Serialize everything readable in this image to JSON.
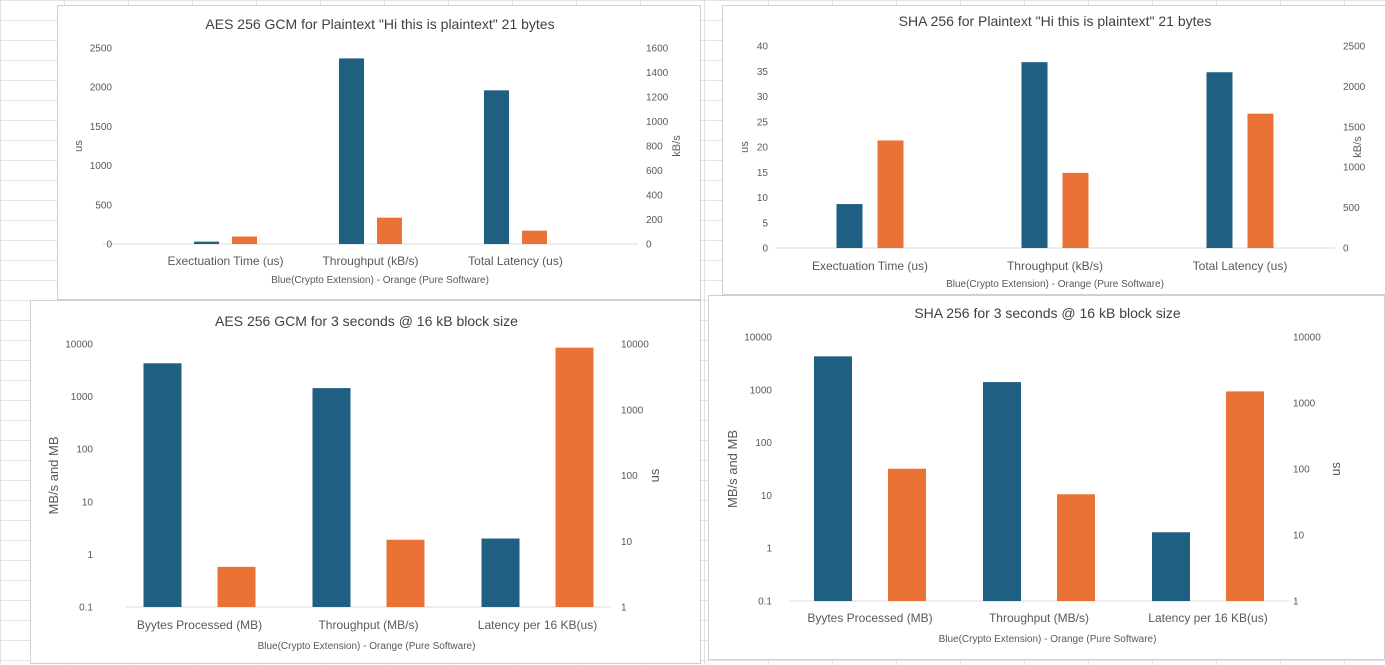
{
  "chart_data": [
    {
      "type": "bar",
      "title": "AES 256 GCM for Plaintext \"Hi this is plaintext\" 21 bytes",
      "xlabel": "Blue(Crypto Extension) - Orange (Pure  Software)",
      "ylabel": "us",
      "y2label": "kB/s",
      "scale": "linear",
      "ylim": [
        0,
        2500
      ],
      "y2lim": [
        0,
        1600
      ],
      "y_ticks": [
        "0",
        "500",
        "1000",
        "1500",
        "2000",
        "2500"
      ],
      "y2_ticks": [
        "0",
        "200",
        "400",
        "600",
        "800",
        "1000",
        "1200",
        "1400",
        "1600"
      ],
      "categories": [
        "Exectuation Time (us)",
        "Throughput (kB/s)",
        "Total Latency (us)"
      ],
      "bars": [
        {
          "category": 0,
          "series": "Crypto Extension",
          "axis": "y",
          "value": 30
        },
        {
          "category": 0,
          "series": "Pure Software",
          "axis": "y",
          "value": 95
        },
        {
          "category": 1,
          "series": "Crypto Extension",
          "axis": "y2",
          "value": 1515
        },
        {
          "category": 1,
          "series": "Pure Software",
          "axis": "y2",
          "value": 215
        },
        {
          "category": 2,
          "series": "Crypto Extension",
          "axis": "y",
          "value": 1960
        },
        {
          "category": 2,
          "series": "Pure Software",
          "axis": "y",
          "value": 170
        }
      ],
      "legend": "none",
      "grid": false
    },
    {
      "type": "bar",
      "title": "SHA 256 for Plaintext \"Hi this is plaintext\" 21 bytes",
      "xlabel": "Blue(Crypto Extension) - Orange (Pure  Software)",
      "ylabel": "us",
      "y2label": "kB/s",
      "scale": "linear",
      "ylim": [
        0,
        40
      ],
      "y2lim": [
        0,
        2500
      ],
      "y_ticks": [
        "0",
        "5",
        "10",
        "15",
        "20",
        "25",
        "30",
        "35",
        "40"
      ],
      "y2_ticks": [
        "0",
        "500",
        "1000",
        "1500",
        "2000",
        "2500"
      ],
      "categories": [
        "Exectuation Time (us)",
        "Throughput (kB/s)",
        "Total Latency (us)"
      ],
      "bars": [
        {
          "category": 0,
          "series": "Crypto Extension",
          "axis": "y",
          "value": 8.7
        },
        {
          "category": 0,
          "series": "Pure Software",
          "axis": "y",
          "value": 21.3
        },
        {
          "category": 1,
          "series": "Crypto Extension",
          "axis": "y2",
          "value": 2300
        },
        {
          "category": 1,
          "series": "Pure Software",
          "axis": "y2",
          "value": 930
        },
        {
          "category": 2,
          "series": "Crypto Extension",
          "axis": "y",
          "value": 34.8
        },
        {
          "category": 2,
          "series": "Pure Software",
          "axis": "y",
          "value": 26.6
        }
      ],
      "legend": "none",
      "grid": false
    },
    {
      "type": "bar",
      "title": "AES 256 GCM for 3 seconds @ 16 kB block size",
      "xlabel": "Blue(Crypto Extension) - Orange (Pure  Software)",
      "ylabel": "MB/s and MB",
      "y2label": "us",
      "scale": "log",
      "ylim": [
        0.1,
        10000
      ],
      "y2lim": [
        1,
        10000
      ],
      "y_ticks": [
        "0.1",
        "1",
        "10",
        "100",
        "1000",
        "10000"
      ],
      "y2_ticks": [
        "1",
        "10",
        "100",
        "1000",
        "10000"
      ],
      "categories": [
        "Byytes Processed (MB)",
        "Throughput (MB/s)",
        "Latency  per 16 KB(us)"
      ],
      "bars": [
        {
          "category": 0,
          "series": "Crypto Extension",
          "axis": "y",
          "value": 4300
        },
        {
          "category": 0,
          "series": "Pure Software",
          "axis": "y",
          "value": 0.58
        },
        {
          "category": 1,
          "series": "Crypto Extension",
          "axis": "y",
          "value": 1450
        },
        {
          "category": 1,
          "series": "Pure Software",
          "axis": "y",
          "value": 1.9
        },
        {
          "category": 2,
          "series": "Crypto Extension",
          "axis": "y2",
          "value": 11
        },
        {
          "category": 2,
          "series": "Pure Software",
          "axis": "y2",
          "value": 8800
        }
      ],
      "legend": "none",
      "grid": false
    },
    {
      "type": "bar",
      "title": "SHA 256 for 3 seconds @ 16 kB block size",
      "xlabel": "Blue(Crypto Extension) - Orange (Pure  Software)",
      "ylabel": "MB/s and MB",
      "y2label": "us",
      "scale": "log",
      "ylim": [
        0.1,
        10000
      ],
      "y2lim": [
        1,
        10000
      ],
      "y_ticks": [
        "0.1",
        "1",
        "10",
        "100",
        "1000",
        "10000"
      ],
      "y2_ticks": [
        "1",
        "10",
        "100",
        "1000",
        "10000"
      ],
      "categories": [
        "Byytes Processed (MB)",
        "Throughput (MB/s)",
        "Latency  per 16 KB(us)"
      ],
      "bars": [
        {
          "category": 0,
          "series": "Crypto Extension",
          "axis": "y",
          "value": 4300
        },
        {
          "category": 0,
          "series": "Pure Software",
          "axis": "y",
          "value": 32
        },
        {
          "category": 1,
          "series": "Crypto Extension",
          "axis": "y",
          "value": 1400
        },
        {
          "category": 1,
          "series": "Pure Software",
          "axis": "y",
          "value": 10.5
        },
        {
          "category": 2,
          "series": "Crypto Extension",
          "axis": "y2",
          "value": 11
        },
        {
          "category": 2,
          "series": "Pure Software",
          "axis": "y2",
          "value": 1500
        }
      ],
      "legend": "none",
      "grid": false
    }
  ],
  "colors": {
    "crypto_extension": "#1f5f82",
    "pure_software": "#ea7234",
    "text": "#595959",
    "axis_line": "#d9d9d9"
  }
}
